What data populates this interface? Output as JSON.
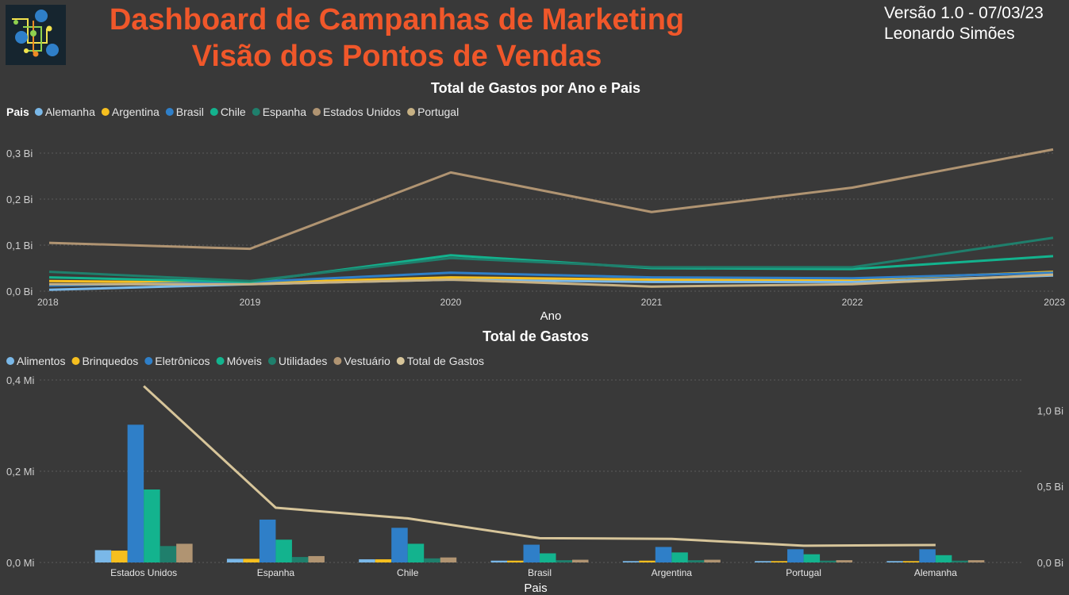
{
  "header": {
    "title_line1": "Dashboard de Campanhas de Marketing",
    "title_line2": "Visão dos Pontos de Vendas",
    "version": "Versão 1.0 - 07/03/23",
    "author": "Leonardo Simões"
  },
  "colors": {
    "Alemanha": "#7ab8e8",
    "Argentina": "#f6bf1f",
    "Brasil": "#2f7fc8",
    "Chile": "#13b38e",
    "Espanha": "#1f7f6c",
    "Estados Unidos": "#b09472",
    "Portugal": "#c7b184",
    "Alimentos": "#7ab8e8",
    "Brinquedos": "#f6bf1f",
    "Eletrônicos": "#2f7fc8",
    "Móveis": "#13b38e",
    "Utilidades": "#1f7f6c",
    "Vestuário": "#b09472",
    "Total de Gastos": "#d7c59a"
  },
  "chart_data": [
    {
      "type": "line",
      "title": "Total de Gastos por Ano e Pais",
      "legend_title": "Pais",
      "legend_position": "top-left",
      "xlabel": "Ano",
      "ylabel": "",
      "x": [
        "2018",
        "2019",
        "2020",
        "2021",
        "2022",
        "2023"
      ],
      "y_ticks": [
        0,
        0.1,
        0.2,
        0.3
      ],
      "y_tick_labels": [
        "0,0 Bi",
        "0,1 Bi",
        "0,2 Bi",
        "0,3 Bi"
      ],
      "ylim": [
        0,
        0.31
      ],
      "grid": true,
      "series": [
        {
          "name": "Alemanha",
          "values": [
            0.003,
            0.015,
            0.025,
            0.02,
            0.02,
            0.034
          ]
        },
        {
          "name": "Argentina",
          "values": [
            0.022,
            0.018,
            0.03,
            0.025,
            0.025,
            0.042
          ]
        },
        {
          "name": "Brasil",
          "values": [
            0.012,
            0.02,
            0.04,
            0.03,
            0.028,
            0.04
          ]
        },
        {
          "name": "Chile",
          "values": [
            0.03,
            0.02,
            0.078,
            0.05,
            0.048,
            0.076
          ]
        },
        {
          "name": "Espanha",
          "values": [
            0.042,
            0.022,
            0.072,
            0.052,
            0.052,
            0.116
          ]
        },
        {
          "name": "Estados Unidos",
          "values": [
            0.105,
            0.092,
            0.258,
            0.172,
            0.225,
            0.308
          ]
        },
        {
          "name": "Portugal",
          "values": [
            0.015,
            0.015,
            0.025,
            0.01,
            0.015,
            0.036
          ]
        }
      ]
    },
    {
      "type": "bar",
      "title": "Total de Gastos",
      "legend_position": "top-left",
      "xlabel": "Pais",
      "ylabel": "",
      "categories": [
        "Estados Unidos",
        "Espanha",
        "Chile",
        "Brasil",
        "Argentina",
        "Portugal",
        "Alemanha"
      ],
      "y_ticks": [
        0,
        0.2,
        0.4
      ],
      "y_tick_labels": [
        "0,0 Mi",
        "0,2 Mi",
        "0,4 Mi"
      ],
      "ylim": [
        0,
        0.4
      ],
      "y2_ticks": [
        0,
        0.5,
        1.0
      ],
      "y2_tick_labels": [
        "0,0 Bi",
        "0,5 Bi",
        "1,0 Bi"
      ],
      "y2lim": [
        0,
        1.2
      ],
      "grid": true,
      "series": [
        {
          "name": "Alimentos",
          "values": [
            0.027,
            0.008,
            0.007,
            0.004,
            0.003,
            0.003,
            0.003
          ]
        },
        {
          "name": "Brinquedos",
          "values": [
            0.026,
            0.008,
            0.007,
            0.004,
            0.004,
            0.003,
            0.003
          ]
        },
        {
          "name": "Eletrônicos",
          "values": [
            0.302,
            0.094,
            0.076,
            0.039,
            0.034,
            0.029,
            0.029
          ]
        },
        {
          "name": "Móveis",
          "values": [
            0.16,
            0.05,
            0.041,
            0.02,
            0.022,
            0.018,
            0.016
          ]
        },
        {
          "name": "Utilidades",
          "values": [
            0.036,
            0.012,
            0.009,
            0.005,
            0.005,
            0.004,
            0.004
          ]
        },
        {
          "name": "Vestuário",
          "values": [
            0.041,
            0.014,
            0.011,
            0.006,
            0.006,
            0.005,
            0.005
          ]
        }
      ],
      "line_series": {
        "name": "Total de Gastos",
        "axis": "y2",
        "values": [
          1.16,
          0.36,
          0.29,
          0.16,
          0.155,
          0.11,
          0.115
        ]
      }
    }
  ]
}
